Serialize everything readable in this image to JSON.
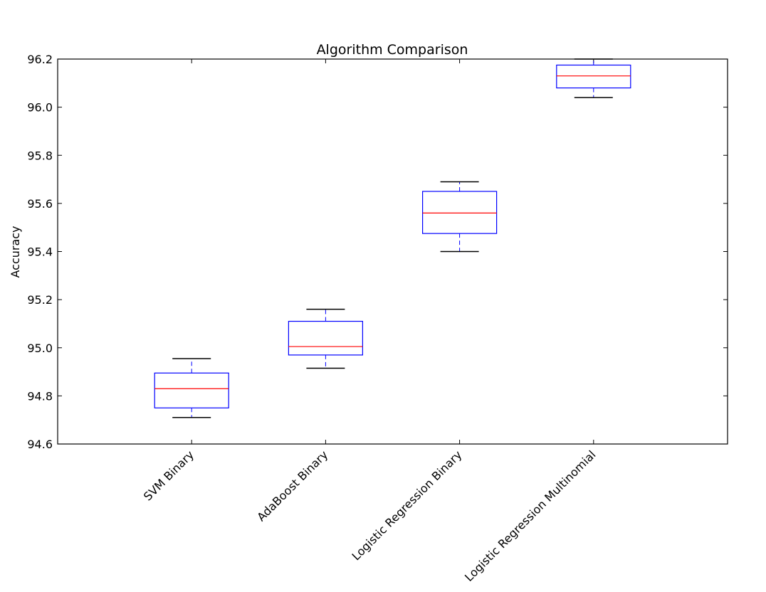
{
  "chart_data": {
    "type": "box",
    "title": "Algorithm Comparison",
    "xlabel": "",
    "ylabel": "Accuracy",
    "ylim": [
      94.6,
      96.2
    ],
    "yticks": [
      "94.6",
      "94.8",
      "95.0",
      "95.2",
      "95.4",
      "95.6",
      "95.8",
      "96.0",
      "96.2"
    ],
    "categories": [
      "SVM Binary",
      "AdaBoost Binary",
      "Logistic Regression Binary",
      "Logistic Regression Multinomial"
    ],
    "boxes": [
      {
        "whisker_low": 94.71,
        "q1": 94.75,
        "median": 94.83,
        "q3": 94.895,
        "whisker_high": 94.955
      },
      {
        "whisker_low": 94.915,
        "q1": 94.97,
        "median": 95.005,
        "q3": 95.11,
        "whisker_high": 95.16
      },
      {
        "whisker_low": 95.4,
        "q1": 95.475,
        "median": 95.56,
        "q3": 95.65,
        "whisker_high": 95.69
      },
      {
        "whisker_low": 96.04,
        "q1": 96.08,
        "median": 96.13,
        "q3": 96.175,
        "whisker_high": 96.2
      }
    ],
    "grid": false,
    "colors": {
      "box": "#0000ff",
      "median": "#ff0000",
      "whisker_cap": "#000000",
      "axes": "#000000"
    }
  }
}
